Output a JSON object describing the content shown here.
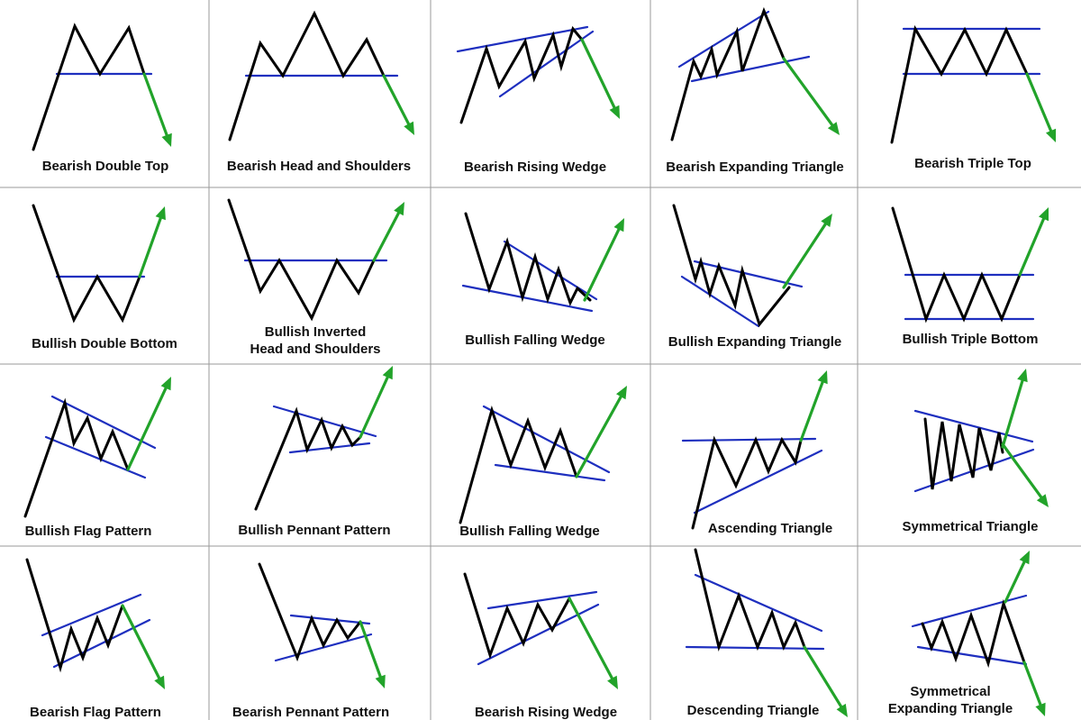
{
  "colors": {
    "price": "#000000",
    "trendline": "#1e2fbf",
    "breakout": "#22a32a",
    "grid": "#9a9a9a",
    "text": "#111111"
  },
  "patterns": [
    {
      "id": "p1",
      "label_lines": [
        "Bearish Double Top"
      ]
    },
    {
      "id": "p2",
      "label_lines": [
        "Bearish Head and Shoulders"
      ]
    },
    {
      "id": "p3",
      "label_lines": [
        "Bearish Rising Wedge"
      ]
    },
    {
      "id": "p4",
      "label_lines": [
        "Bearish Expanding Triangle"
      ]
    },
    {
      "id": "p5",
      "label_lines": [
        "Bearish Triple Top"
      ]
    },
    {
      "id": "p6",
      "label_lines": [
        "Bullish Double Bottom"
      ]
    },
    {
      "id": "p7",
      "label_lines": [
        "Bullish Inverted",
        "Head and Shoulders"
      ]
    },
    {
      "id": "p8",
      "label_lines": [
        "Bullish Falling Wedge"
      ]
    },
    {
      "id": "p9",
      "label_lines": [
        "Bullish Expanding Triangle"
      ]
    },
    {
      "id": "p10",
      "label_lines": [
        "Bullish Triple Bottom"
      ]
    },
    {
      "id": "p11",
      "label_lines": [
        "Bullish Flag Pattern"
      ]
    },
    {
      "id": "p12",
      "label_lines": [
        "Bullish Pennant Pattern"
      ]
    },
    {
      "id": "p13",
      "label_lines": [
        "Bullish Falling Wedge"
      ]
    },
    {
      "id": "p14",
      "label_lines": [
        "Ascending Triangle"
      ]
    },
    {
      "id": "p15",
      "label_lines": [
        "Symmetrical Triangle"
      ]
    },
    {
      "id": "p16",
      "label_lines": [
        "Bearish Flag Pattern"
      ]
    },
    {
      "id": "p17",
      "label_lines": [
        "Bearish Pennant Pattern"
      ]
    },
    {
      "id": "p18",
      "label_lines": [
        "Bearish Rising Wedge"
      ]
    },
    {
      "id": "p19",
      "label_lines": [
        "Descending Triangle"
      ]
    },
    {
      "id": "p20",
      "label_lines": [
        "Symmetrical",
        "Expanding Triangle"
      ]
    }
  ]
}
